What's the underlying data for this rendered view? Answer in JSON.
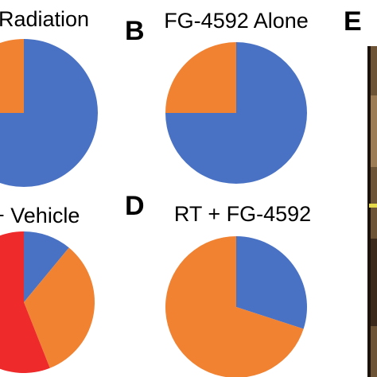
{
  "figure": {
    "panel_letters": [
      "B",
      "D",
      "E"
    ]
  },
  "colors": {
    "blue": "#4a72c4",
    "orange": "#f08232",
    "red": "#ee2a2a",
    "photo_dark": "#3b2a1c",
    "photo_mid": "#6d5437",
    "photo_light": "#9c7c55",
    "yellow_mark": "#e3d94a"
  },
  "chart_data": [
    {
      "type": "pie",
      "title": "Radiation",
      "slices": [
        {
          "value": 75,
          "color": "#4a72c4"
        },
        {
          "value": 25,
          "color": "#f08232"
        }
      ]
    },
    {
      "type": "pie",
      "title": "FG-4592 Alone",
      "slices": [
        {
          "value": 75,
          "color": "#4a72c4"
        },
        {
          "value": 25,
          "color": "#f08232"
        }
      ]
    },
    {
      "type": "pie",
      "title": "+ Vehicle",
      "slices": [
        {
          "value": 11,
          "color": "#4a72c4"
        },
        {
          "value": 33,
          "color": "#f08232"
        },
        {
          "value": 56,
          "color": "#ee2a2a"
        }
      ]
    },
    {
      "type": "pie",
      "title": "RT + FG-4592",
      "slices": [
        {
          "value": 30,
          "color": "#4a72c4"
        },
        {
          "value": 70,
          "color": "#f08232"
        }
      ]
    }
  ]
}
